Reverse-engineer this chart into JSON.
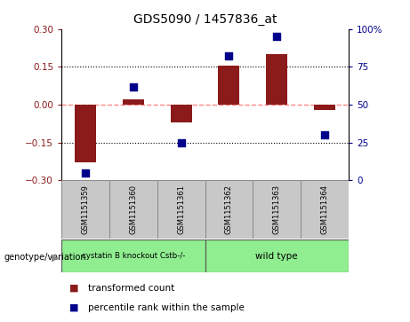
{
  "title": "GDS5090 / 1457836_at",
  "samples": [
    "GSM1151359",
    "GSM1151360",
    "GSM1151361",
    "GSM1151362",
    "GSM1151363",
    "GSM1151364"
  ],
  "red_values": [
    -0.23,
    0.02,
    -0.07,
    0.155,
    0.2,
    -0.02
  ],
  "blue_percentiles": [
    5,
    62,
    25,
    82,
    95,
    30
  ],
  "ylim_left": [
    -0.3,
    0.3
  ],
  "ylim_right": [
    0,
    100
  ],
  "yticks_left": [
    -0.3,
    -0.15,
    0,
    0.15,
    0.3
  ],
  "yticks_right": [
    0,
    25,
    50,
    75,
    100
  ],
  "yticklabels_right": [
    "0",
    "25",
    "50",
    "75",
    "100%"
  ],
  "red_color": "#8B1A1A",
  "blue_color": "#00008B",
  "dashed_zero_color": "#FF8888",
  "bar_width": 0.45,
  "dot_size": 40,
  "bg_color": "#FFFFFF",
  "plot_bg_color": "#FFFFFF",
  "label_red": "transformed count",
  "label_blue": "percentile rank within the sample",
  "group1_label": "cystatin B knockout Cstb-/-",
  "group2_label": "wild type",
  "group_color": "#90EE90",
  "sample_box_color": "#C8C8C8",
  "genotype_label": "genotype/variation"
}
